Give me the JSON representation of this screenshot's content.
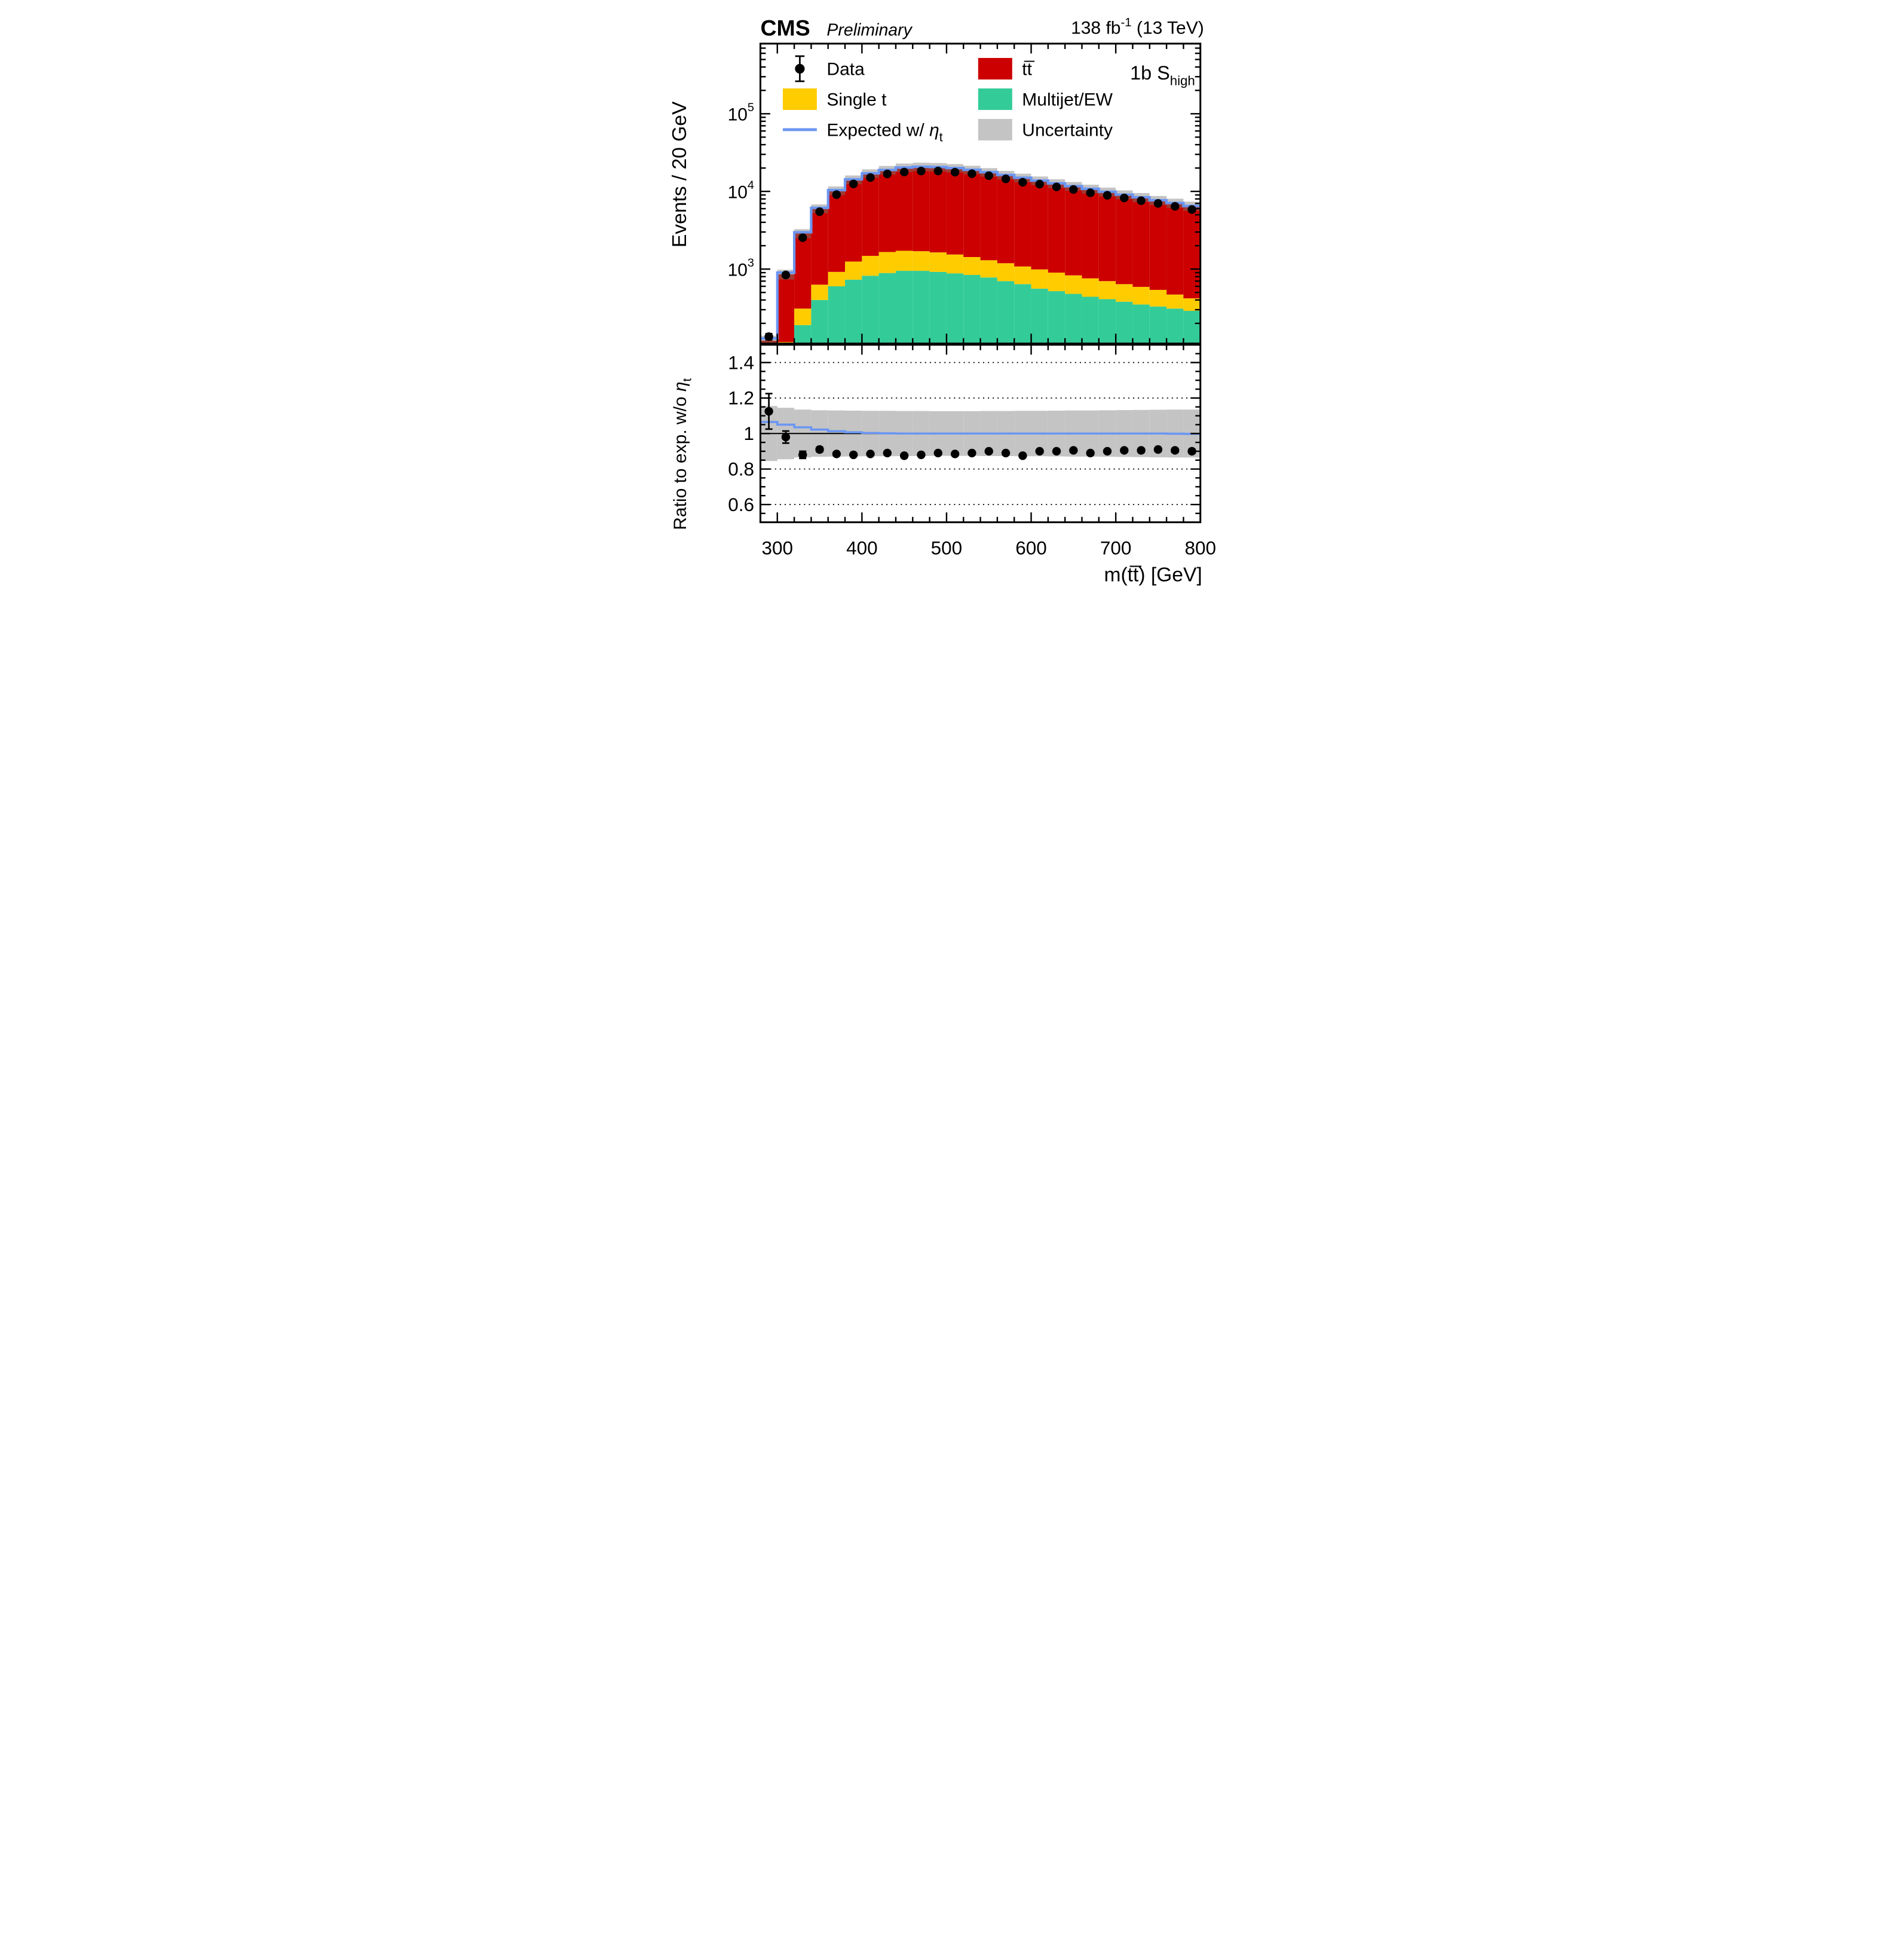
{
  "header": {
    "cms": "CMS",
    "status": "Preliminary",
    "lumi_prefix": "138 fb",
    "lumi_sup": "-1",
    "lumi_suffix": " (13 TeV)"
  },
  "annotation": {
    "region": "1b S",
    "region_sub": "high"
  },
  "legend": {
    "data": "Data",
    "ttbar": "tt̅",
    "single_t": "Single t",
    "multijet": "Multijet/EW",
    "expected_prefix": "Expected w/ ",
    "expected_eta": "η",
    "expected_sub": "t",
    "uncertainty": "Uncertainty"
  },
  "axes": {
    "y_title": "Events / 20 GeV",
    "x_title": "m(tt̅) [GeV]",
    "ratio_title_prefix": "Ratio to exp. w/o ",
    "ratio_eta": "η",
    "ratio_sub": "t",
    "x_ticks": [
      {
        "v": 300,
        "label": "300"
      },
      {
        "v": 400,
        "label": "400"
      },
      {
        "v": 500,
        "label": "500"
      },
      {
        "v": 600,
        "label": "600"
      },
      {
        "v": 700,
        "label": "700"
      },
      {
        "v": 800,
        "label": "800"
      }
    ],
    "y_decades": [
      {
        "v": 1000,
        "base": "10",
        "exp": "3"
      },
      {
        "v": 10000,
        "base": "10",
        "exp": "4"
      },
      {
        "v": 100000,
        "base": "10",
        "exp": "5"
      }
    ],
    "ratio_ticks": [
      {
        "v": 0.6,
        "label": "0.6"
      },
      {
        "v": 0.8,
        "label": "0.8"
      },
      {
        "v": 1,
        "label": "1"
      },
      {
        "v": 1.2,
        "label": "1.2"
      },
      {
        "v": 1.4,
        "label": "1.4"
      }
    ],
    "ratio_gridlines": [
      0.6,
      0.8,
      1.2,
      1.4
    ]
  },
  "colors": {
    "ttbar": "#cc0000",
    "single_t": "#ffcc00",
    "multijet": "#33cc99",
    "expected": "#6b96f2",
    "uncertainty": "#c4c4c4",
    "band_on_red": "#a03a32",
    "data": "#000000"
  },
  "chart_data": {
    "type": "stacked-histogram-with-ratio",
    "title": "CMS Preliminary 138 fb-1 (13 TeV), 1b S_high region",
    "xlabel": "m(ttbar) [GeV]",
    "ylabel": "Events / 20 GeV",
    "x_range": [
      280,
      800
    ],
    "bin_width": 20,
    "y_log_range": [
      110,
      800000
    ],
    "bin_centers": [
      290,
      310,
      330,
      350,
      370,
      390,
      410,
      430,
      450,
      470,
      490,
      510,
      530,
      550,
      570,
      590,
      610,
      630,
      650,
      670,
      690,
      710,
      730,
      750,
      770,
      790
    ],
    "series": [
      {
        "name": "Multijet/EW",
        "values": [
          3,
          50,
          190,
          400,
          600,
          730,
          820,
          890,
          950,
          950,
          920,
          880,
          840,
          780,
          700,
          640,
          560,
          520,
          480,
          440,
          410,
          380,
          350,
          330,
          310,
          290
        ]
      },
      {
        "name": "Single t",
        "values": [
          5,
          65,
          120,
          230,
          320,
          520,
          660,
          770,
          770,
          750,
          720,
          660,
          590,
          520,
          490,
          440,
          430,
          380,
          350,
          320,
          290,
          260,
          240,
          210,
          160,
          130
        ]
      },
      {
        "name": "ttbar",
        "values": [
          112,
          742,
          2570,
          5390,
          9350,
          12960,
          15570,
          17220,
          18580,
          19100,
          18960,
          18460,
          17570,
          16400,
          15110,
          13920,
          12810,
          11800,
          10870,
          10040,
          9200,
          8460,
          7810,
          7160,
          6630,
          6080
        ]
      }
    ],
    "expected_with_eta_t": [
      128,
      900,
      2980,
      6150,
      10400,
      14310,
      17100,
      18900,
      20300,
      20800,
      20600,
      20000,
      19000,
      17700,
      16300,
      15000,
      13800,
      12700,
      11700,
      10800,
      9900,
      9100,
      8400,
      7700,
      7093,
      6487
    ],
    "uncertainty_rel": [
      0.155,
      0.145,
      0.135,
      0.131,
      0.13,
      0.129,
      0.128,
      0.128,
      0.127,
      0.127,
      0.126,
      0.126,
      0.126,
      0.127,
      0.127,
      0.128,
      0.128,
      0.129,
      0.13,
      0.13,
      0.131,
      0.132,
      0.133,
      0.134,
      0.135,
      0.135
    ],
    "data": {
      "values": [
        135,
        840,
        2535,
        5480,
        9090,
        12500,
        15090,
        16800,
        17760,
        18300,
        18330,
        17700,
        16910,
        15930,
        14510,
        13130,
        12420,
        11430,
        10590,
        9610,
        8910,
        8240,
        7600,
        7010,
        6430,
        5850
      ],
      "errors": [
        12,
        29,
        50,
        74,
        95,
        112,
        123,
        130,
        133,
        135,
        135,
        133,
        130,
        126,
        120,
        115,
        111,
        107,
        103,
        98,
        94,
        91,
        87,
        84,
        80,
        76
      ]
    },
    "ratio": {
      "ylim": [
        0.5,
        1.5
      ],
      "points": [
        1.125,
        0.98,
        0.88,
        0.91,
        0.885,
        0.88,
        0.885,
        0.89,
        0.875,
        0.88,
        0.89,
        0.885,
        0.89,
        0.9,
        0.89,
        0.875,
        0.9,
        0.9,
        0.905,
        0.89,
        0.9,
        0.905,
        0.905,
        0.91,
        0.905,
        0.9
      ],
      "errors": [
        0.1,
        0.034,
        0.02,
        0.013,
        0.01,
        0.009,
        0.008,
        0.008,
        0.008,
        0.008,
        0.008,
        0.008,
        0.008,
        0.008,
        0.008,
        0.009,
        0.009,
        0.009,
        0.009,
        0.01,
        0.01,
        0.01,
        0.011,
        0.011,
        0.011,
        0.012
      ],
      "expected_line": [
        1.065,
        1.05,
        1.035,
        1.022,
        1.013,
        1.007,
        1.003,
        1.001,
        1,
        1,
        1,
        1,
        1,
        1,
        1,
        1,
        1,
        1,
        1,
        1,
        1,
        1,
        1,
        1,
        0.999,
        0.998
      ]
    }
  }
}
